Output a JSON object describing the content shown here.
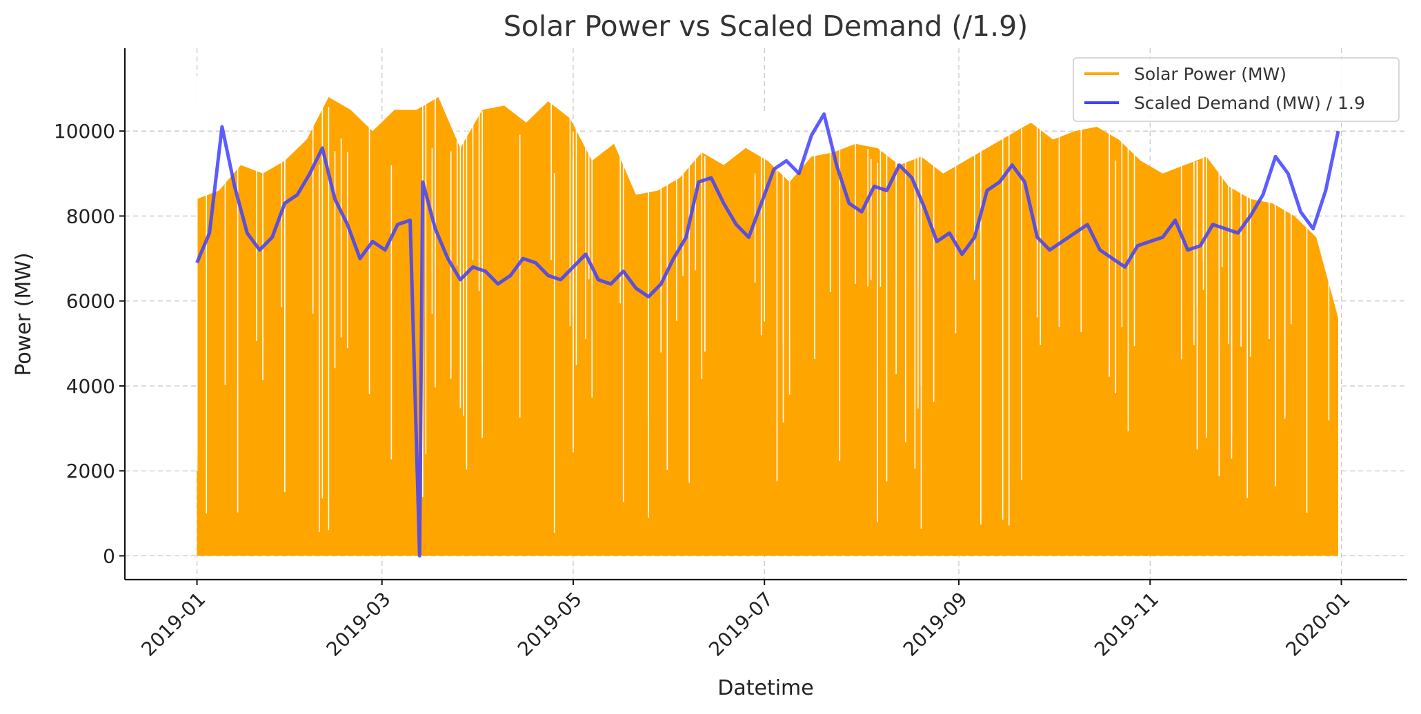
{
  "chart_data": {
    "type": "line",
    "title": "Solar Power vs Scaled Demand (/1.9)",
    "xlabel": "Datetime",
    "ylabel": "Power (MW)",
    "x_range": [
      "2018-12-09",
      "2020-01-22"
    ],
    "ylim": [
      -560,
      11950
    ],
    "x_ticks": [
      "2019-01",
      "2019-03",
      "2019-05",
      "2019-07",
      "2019-09",
      "2019-11",
      "2020-01"
    ],
    "y_ticks": [
      0,
      2000,
      4000,
      6000,
      8000,
      10000
    ],
    "grid": true,
    "legend_position": "top-right",
    "series": [
      {
        "name": "Solar Power (MW)",
        "color": "#FFA500",
        "style": "filled daily oscillation between 0 and the daily peak (upper envelope listed)",
        "x": [
          "2019-01-01",
          "2019-01-08",
          "2019-01-15",
          "2019-01-22",
          "2019-01-29",
          "2019-02-05",
          "2019-02-12",
          "2019-02-19",
          "2019-02-26",
          "2019-03-05",
          "2019-03-12",
          "2019-03-19",
          "2019-03-26",
          "2019-04-02",
          "2019-04-09",
          "2019-04-16",
          "2019-04-23",
          "2019-04-30",
          "2019-05-07",
          "2019-05-14",
          "2019-05-21",
          "2019-05-28",
          "2019-06-04",
          "2019-06-11",
          "2019-06-18",
          "2019-06-25",
          "2019-07-02",
          "2019-07-09",
          "2019-07-16",
          "2019-07-23",
          "2019-07-30",
          "2019-08-06",
          "2019-08-13",
          "2019-08-20",
          "2019-08-27",
          "2019-09-03",
          "2019-09-10",
          "2019-09-17",
          "2019-09-24",
          "2019-10-01",
          "2019-10-08",
          "2019-10-15",
          "2019-10-22",
          "2019-10-29",
          "2019-11-05",
          "2019-11-12",
          "2019-11-19",
          "2019-11-26",
          "2019-12-03",
          "2019-12-10",
          "2019-12-17",
          "2019-12-24",
          "2019-12-31"
        ],
        "values": [
          8400,
          8600,
          9200,
          9000,
          9300,
          9800,
          10800,
          10500,
          10000,
          10500,
          10500,
          10800,
          9600,
          10500,
          10600,
          10200,
          10700,
          10300,
          9300,
          9700,
          8500,
          8600,
          8900,
          9500,
          9200,
          9600,
          9300,
          8800,
          9400,
          9500,
          9700,
          9600,
          9200,
          9400,
          9000,
          9300,
          9600,
          9900,
          10200,
          9800,
          10000,
          10100,
          9800,
          9300,
          9000,
          9200,
          9400,
          8700,
          8400,
          8300,
          8000,
          7500,
          5600
        ]
      },
      {
        "name": "Scaled Demand (MW) / 1.9",
        "color": "#4040FF",
        "style": "line",
        "x": [
          "2019-01-01",
          "2019-01-05",
          "2019-01-09",
          "2019-01-13",
          "2019-01-17",
          "2019-01-21",
          "2019-01-25",
          "2019-01-29",
          "2019-02-02",
          "2019-02-06",
          "2019-02-10",
          "2019-02-14",
          "2019-02-18",
          "2019-02-22",
          "2019-02-26",
          "2019-03-02",
          "2019-03-06",
          "2019-03-10",
          "2019-03-13",
          "2019-03-14",
          "2019-03-18",
          "2019-03-22",
          "2019-03-26",
          "2019-03-30",
          "2019-04-03",
          "2019-04-07",
          "2019-04-11",
          "2019-04-15",
          "2019-04-19",
          "2019-04-23",
          "2019-04-27",
          "2019-05-01",
          "2019-05-05",
          "2019-05-09",
          "2019-05-13",
          "2019-05-17",
          "2019-05-21",
          "2019-05-25",
          "2019-05-29",
          "2019-06-02",
          "2019-06-06",
          "2019-06-10",
          "2019-06-14",
          "2019-06-18",
          "2019-06-22",
          "2019-06-26",
          "2019-06-30",
          "2019-07-04",
          "2019-07-08",
          "2019-07-12",
          "2019-07-16",
          "2019-07-20",
          "2019-07-24",
          "2019-07-28",
          "2019-08-01",
          "2019-08-05",
          "2019-08-09",
          "2019-08-13",
          "2019-08-17",
          "2019-08-21",
          "2019-08-25",
          "2019-08-29",
          "2019-09-02",
          "2019-09-06",
          "2019-09-10",
          "2019-09-14",
          "2019-09-18",
          "2019-09-22",
          "2019-09-26",
          "2019-09-30",
          "2019-10-04",
          "2019-10-08",
          "2019-10-12",
          "2019-10-16",
          "2019-10-20",
          "2019-10-24",
          "2019-10-28",
          "2019-11-01",
          "2019-11-05",
          "2019-11-09",
          "2019-11-13",
          "2019-11-17",
          "2019-11-21",
          "2019-11-25",
          "2019-11-29",
          "2019-12-03",
          "2019-12-07",
          "2019-12-11",
          "2019-12-15",
          "2019-12-19",
          "2019-12-23",
          "2019-12-27",
          "2019-12-31"
        ],
        "values": [
          6900,
          7600,
          10100,
          8700,
          7600,
          7200,
          7500,
          8300,
          8500,
          9000,
          9600,
          8400,
          7800,
          7000,
          7400,
          7200,
          7800,
          7900,
          0,
          8800,
          7700,
          7000,
          6500,
          6800,
          6700,
          6400,
          6600,
          7000,
          6900,
          6600,
          6500,
          6800,
          7100,
          6500,
          6400,
          6700,
          6300,
          6100,
          6400,
          7000,
          7500,
          8800,
          8900,
          8300,
          7800,
          7500,
          8300,
          9100,
          9300,
          9000,
          9900,
          10400,
          9200,
          8300,
          8100,
          8700,
          8600,
          9200,
          8900,
          8200,
          7400,
          7600,
          7100,
          7500,
          8600,
          8800,
          9200,
          8800,
          7500,
          7200,
          7400,
          7600,
          7800,
          7200,
          7000,
          6800,
          7300,
          7400,
          7500,
          7900,
          7200,
          7300,
          7800,
          7700,
          7600,
          8000,
          8500,
          9400,
          9000,
          8100,
          7700,
          8600,
          10000
        ]
      }
    ]
  }
}
